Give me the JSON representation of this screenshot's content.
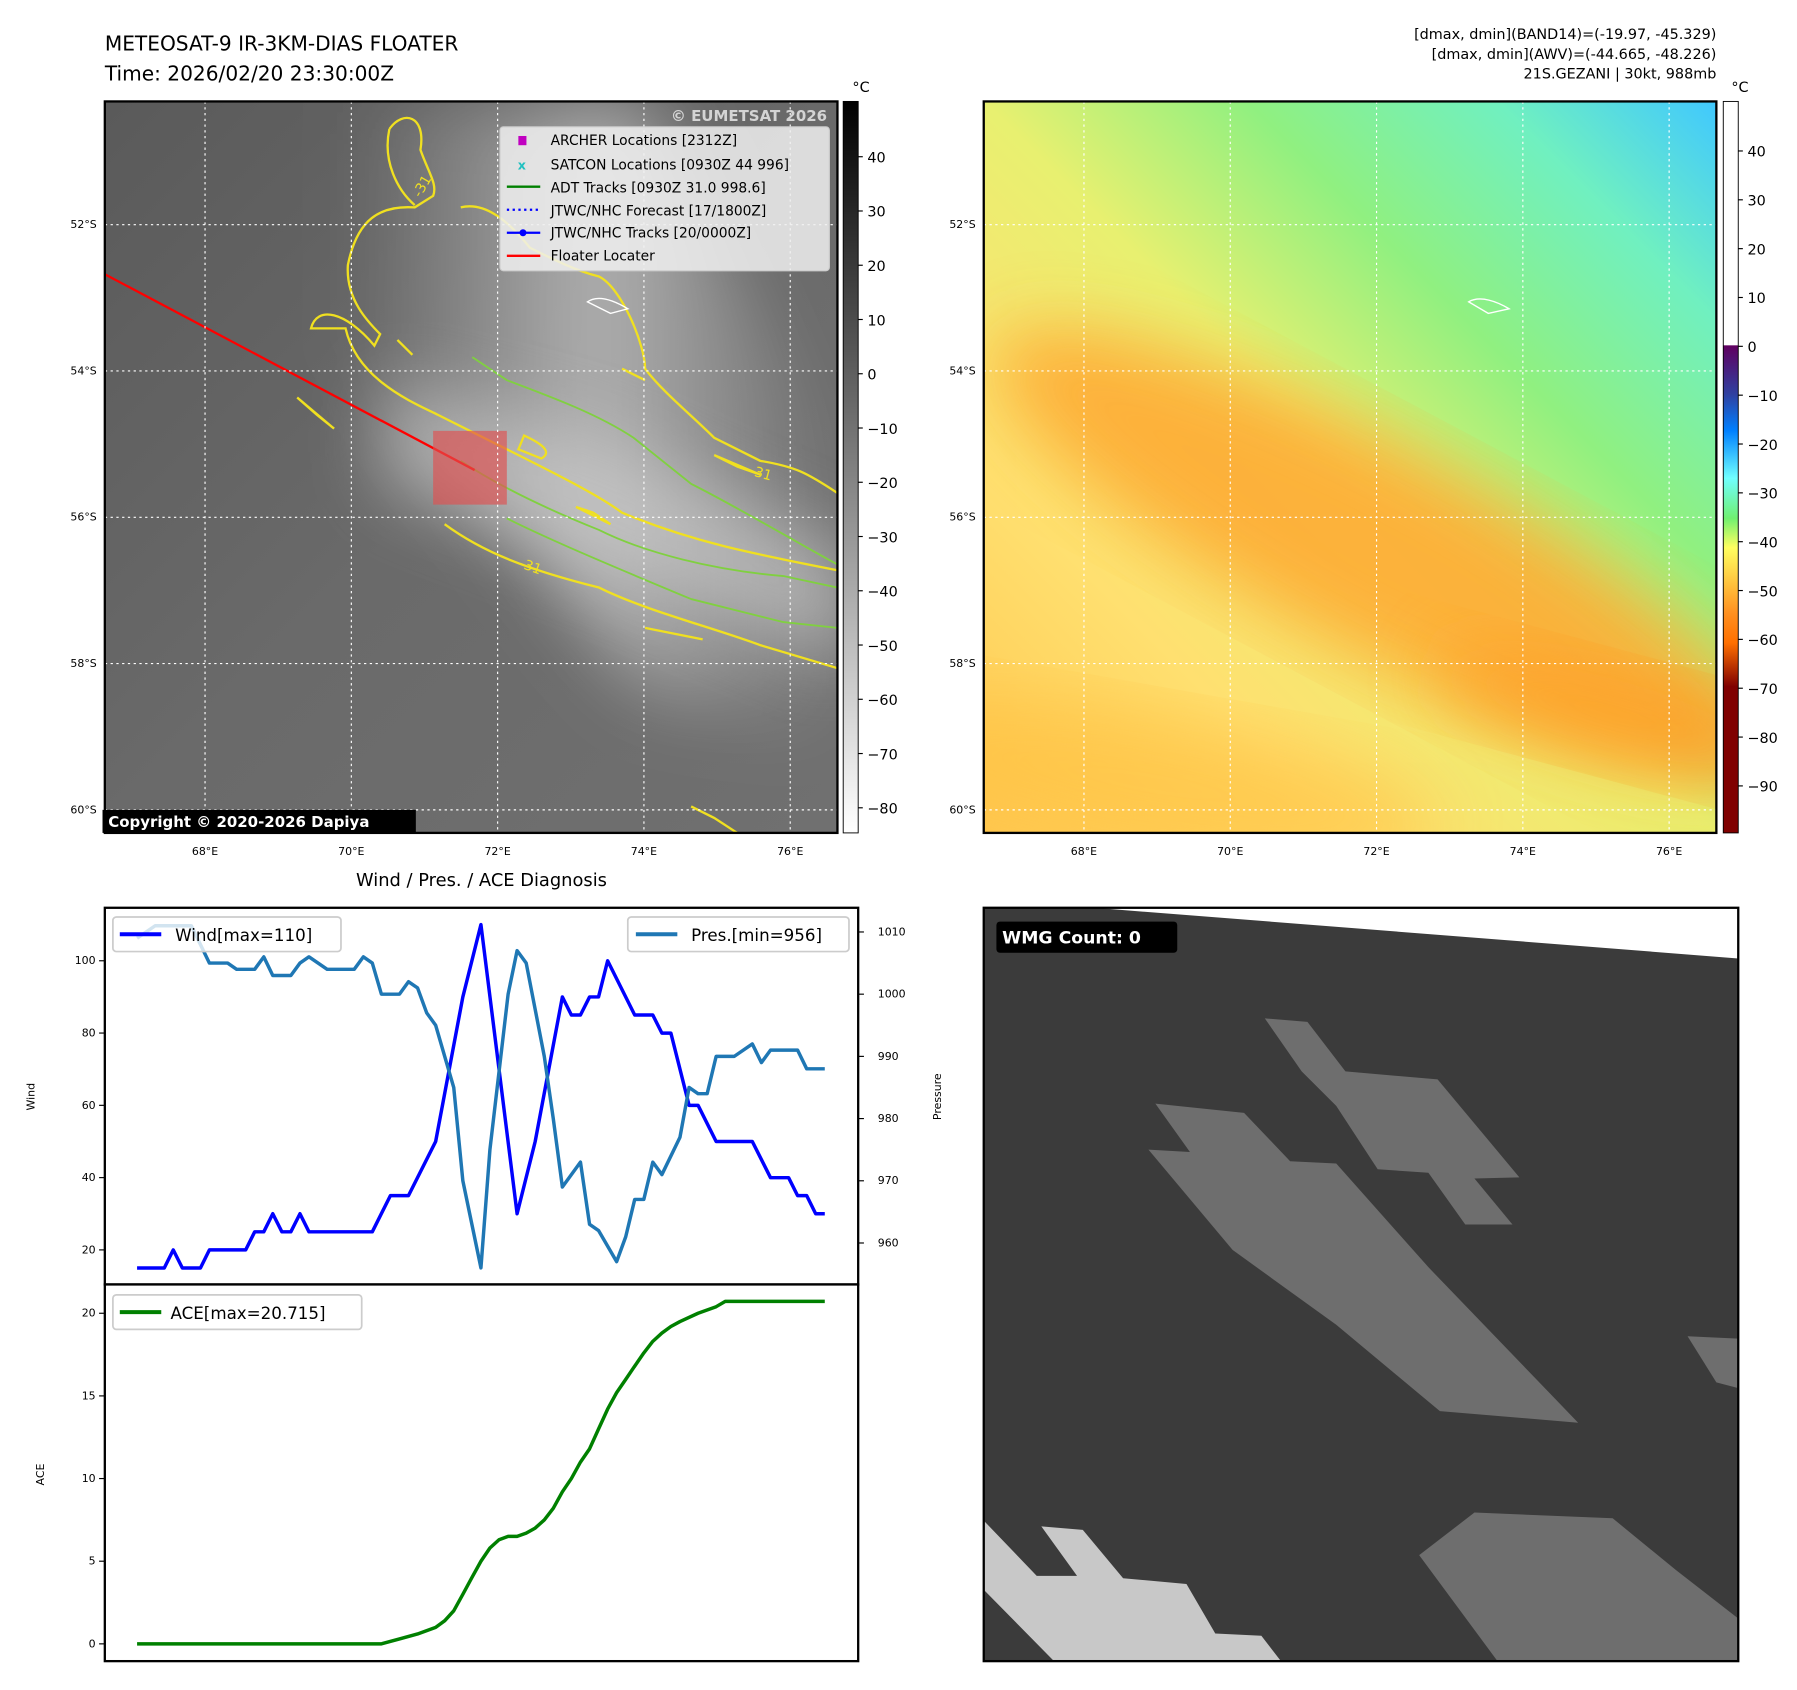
{
  "header": {
    "title": "METEOSAT-9 IR-3KM-DIAS FLOATER",
    "time": "Time: 2026/02/20 23:30:00Z",
    "stats": [
      "[dmax, dmin](BAND14)=(-19.97, -45.329)",
      "[dmax, dmin](AWV)=(-44.665, -48.226)",
      "21S.GEZANI | 30kt, 988mb"
    ]
  },
  "ir_map": {
    "watermark": "© EUMETSAT 2026",
    "copyright": "Copyright © 2020-2026 Dapiya",
    "contour_label": "-31",
    "lat_labels": [
      "52°S",
      "54°S",
      "56°S",
      "58°S",
      "60°S"
    ],
    "lon_labels": [
      "68°E",
      "70°E",
      "72°E",
      "74°E",
      "76°E"
    ],
    "legend": [
      {
        "label": "ARCHER Locations [2312Z]",
        "color": "#c000c0",
        "marker": "square"
      },
      {
        "label": "SATCON Locations [0930Z 44 996]",
        "color": "#20c0c0",
        "marker": "x"
      },
      {
        "label": "ADT Tracks [0930Z 31.0 998.6]",
        "color": "#008000",
        "marker": "line"
      },
      {
        "label": "JTWC/NHC Forecast [17/1800Z]",
        "color": "#0000ff",
        "marker": "dotted"
      },
      {
        "label": "JTWC/NHC Tracks [20/0000Z]",
        "color": "#0000ff",
        "marker": "line-dot"
      },
      {
        "label": "Floater Locater",
        "color": "#ff0000",
        "marker": "line"
      }
    ],
    "colorbar": {
      "unit": "°C",
      "ticks": [
        "40",
        "30",
        "20",
        "10",
        "0",
        "−10",
        "−20",
        "−30",
        "−40",
        "−50",
        "−60",
        "−70",
        "−80"
      ]
    }
  },
  "awv_map": {
    "lat_labels": [
      "52°S",
      "54°S",
      "56°S",
      "58°S",
      "60°S"
    ],
    "lon_labels": [
      "68°E",
      "70°E",
      "72°E",
      "74°E",
      "76°E"
    ],
    "colorbar": {
      "unit": "°C",
      "ticks": [
        "40",
        "30",
        "20",
        "10",
        "0",
        "−10",
        "−20",
        "−30",
        "−40",
        "−50",
        "−60",
        "−70",
        "−80",
        "−90"
      ]
    }
  },
  "wmg": {
    "label": "WMG Count: 0"
  },
  "chart_data": [
    {
      "type": "line",
      "title": "Wind / Pres. / ACE Diagnosis",
      "xlabel": "",
      "ylabel": "Wind",
      "ylabel_right": "Pressure",
      "ylim": [
        11,
        115
      ],
      "ylim_right": [
        953,
        1013
      ],
      "yticks": [
        "20",
        "40",
        "60",
        "80",
        "100"
      ],
      "yticks_right": [
        "960",
        "970",
        "980",
        "990",
        "1000",
        "1010"
      ],
      "series": [
        {
          "name": "Wind[max=110]",
          "axis": "left",
          "color": "#0000ff",
          "x": [
            0,
            3,
            4,
            5,
            7,
            8,
            12,
            13,
            14,
            15,
            16,
            17,
            18,
            19,
            26,
            28,
            30,
            33,
            36,
            38,
            42,
            44,
            47,
            48,
            49,
            50,
            51,
            52,
            55,
            57,
            58,
            59,
            61,
            62,
            64,
            68,
            70,
            72,
            73,
            74,
            75,
            76
          ],
          "values": [
            15,
            15,
            20,
            15,
            15,
            20,
            20,
            25,
            25,
            30,
            25,
            25,
            30,
            25,
            25,
            35,
            35,
            50,
            90,
            110,
            30,
            50,
            90,
            85,
            85,
            90,
            90,
            100,
            85,
            85,
            80,
            80,
            60,
            60,
            50,
            50,
            40,
            40,
            35,
            35,
            30,
            30
          ]
        },
        {
          "name": "Pres.[min=956]",
          "axis": "right",
          "color": "#1f77b4",
          "x": [
            0,
            2,
            6,
            8,
            10,
            11,
            13,
            14,
            15,
            17,
            18,
            19,
            20,
            21,
            24,
            25,
            26,
            27,
            29,
            30,
            31,
            32,
            33,
            35,
            36,
            38,
            39,
            41,
            42,
            43,
            45,
            46,
            47,
            49,
            50,
            51,
            53,
            54,
            55,
            56,
            57,
            58,
            60,
            61,
            62,
            63,
            64,
            66,
            68,
            69,
            70,
            73,
            74,
            76
          ],
          "values": [
            1009,
            1011,
            1011,
            1005,
            1005,
            1004,
            1004,
            1006,
            1003,
            1003,
            1005,
            1006,
            1005,
            1004,
            1004,
            1006,
            1005,
            1000,
            1000,
            1002,
            1001,
            997,
            995,
            985,
            970,
            956,
            975,
            1000,
            1007,
            1005,
            990,
            980,
            969,
            973,
            963,
            962,
            957,
            961,
            967,
            967,
            973,
            971,
            977,
            985,
            984,
            984,
            990,
            990,
            992,
            989,
            991,
            991,
            988,
            988
          ]
        }
      ],
      "legend": [
        "top-left",
        "top-right"
      ]
    },
    {
      "type": "line",
      "title": "",
      "ylabel": "ACE",
      "ylim": [
        -1,
        22
      ],
      "yticks": [
        "0",
        "5",
        "10",
        "15",
        "20"
      ],
      "series": [
        {
          "name": "ACE[max=20.715]",
          "color": "#008000",
          "x": [
            0,
            27,
            29,
            31,
            33,
            34,
            35,
            36,
            37,
            38,
            39,
            40,
            41,
            42,
            43,
            44,
            45,
            46,
            47,
            48,
            49,
            50,
            51,
            52,
            53,
            54,
            55,
            56,
            57,
            58,
            59,
            60,
            62,
            64,
            65,
            76
          ],
          "values": [
            0,
            0,
            0.3,
            0.6,
            1.0,
            1.4,
            2.0,
            3.0,
            4.0,
            5.0,
            5.8,
            6.3,
            6.5,
            6.5,
            6.7,
            7.0,
            7.5,
            8.2,
            9.2,
            10.0,
            11.0,
            11.8,
            13.0,
            14.2,
            15.2,
            16.0,
            16.8,
            17.6,
            18.3,
            18.8,
            19.2,
            19.5,
            20.0,
            20.4,
            20.715,
            20.715
          ]
        }
      ],
      "legend": "top-left"
    }
  ]
}
